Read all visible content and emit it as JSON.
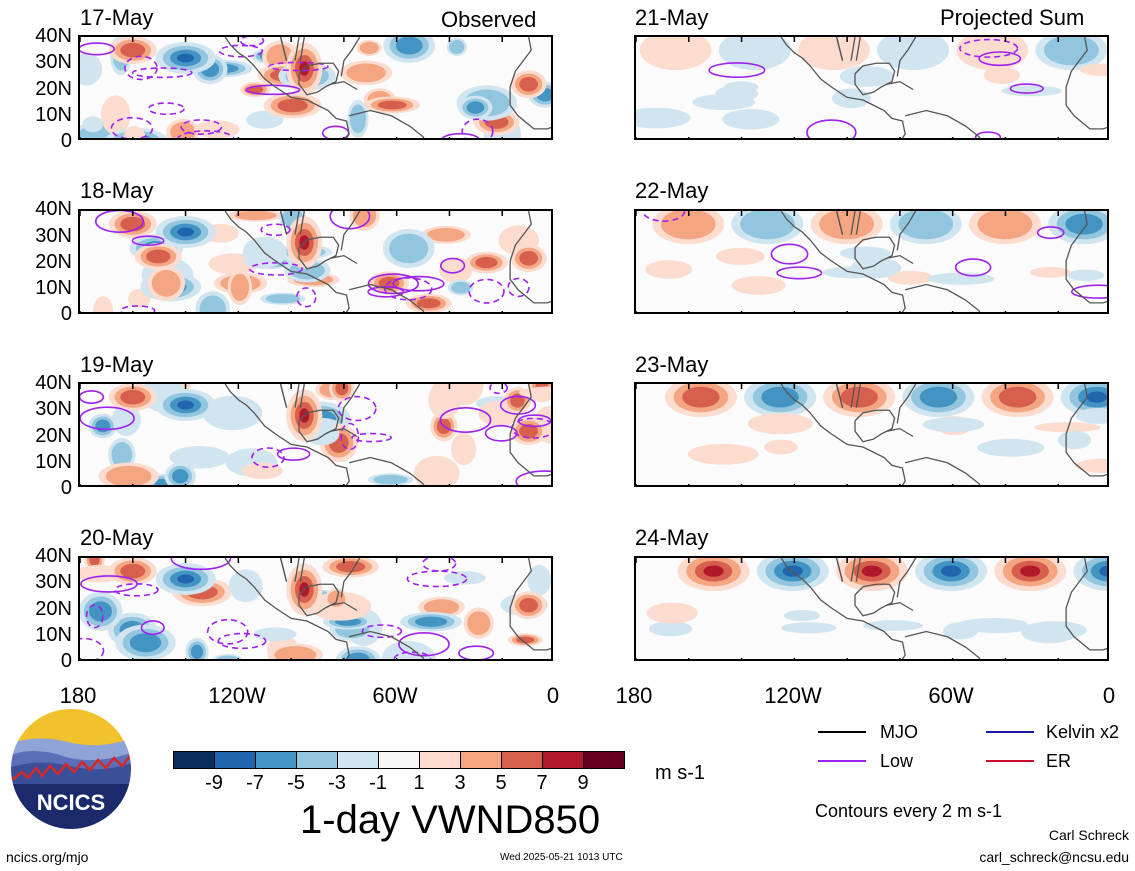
{
  "panels": [
    {
      "id": "p1",
      "date": "17-May",
      "tag": "Observed",
      "col": 0,
      "row": 0,
      "mode": "obs"
    },
    {
      "id": "p2",
      "date": "18-May",
      "tag": "",
      "col": 0,
      "row": 1,
      "mode": "obs"
    },
    {
      "id": "p3",
      "date": "19-May",
      "tag": "",
      "col": 0,
      "row": 2,
      "mode": "obs"
    },
    {
      "id": "p4",
      "date": "20-May",
      "tag": "",
      "col": 0,
      "row": 3,
      "mode": "obs"
    },
    {
      "id": "p5",
      "date": "21-May",
      "tag": "Projected Sum",
      "col": 1,
      "row": 0,
      "mode": "proj"
    },
    {
      "id": "p6",
      "date": "22-May",
      "tag": "",
      "col": 1,
      "row": 1,
      "mode": "proj"
    },
    {
      "id": "p7",
      "date": "23-May",
      "tag": "",
      "col": 1,
      "row": 2,
      "mode": "proj"
    },
    {
      "id": "p8",
      "date": "24-May",
      "tag": "",
      "col": 1,
      "row": 3,
      "mode": "proj"
    }
  ],
  "y_ticks": [
    "40N",
    "30N",
    "20N",
    "10N",
    "0"
  ],
  "x_ticks": [
    "180",
    "120W",
    "60W",
    "0"
  ],
  "colorbar": {
    "colors": [
      "#0b2e5c",
      "#2166ac",
      "#4393c3",
      "#92c5de",
      "#d1e5f0",
      "#f7f7f7",
      "#fbdccf",
      "#f4a582",
      "#d6604d",
      "#b2182b",
      "#67001f"
    ],
    "labels": [
      "-9",
      "-7",
      "-5",
      "-3",
      "-1",
      "1",
      "3",
      "5",
      "7",
      "9"
    ],
    "units": "m s-1"
  },
  "title": "1-day VWND850",
  "legend": [
    {
      "name": "MJO",
      "color": "#000000"
    },
    {
      "name": "Kelvin x2",
      "color": "#1a1aa0"
    },
    {
      "name": "Low",
      "color": "#a020f0"
    },
    {
      "name": "ER",
      "color": "#c8102e"
    }
  ],
  "contour_note": "Contours every 2 m s-1",
  "author": "Carl Schreck",
  "email": "carl_schreck@ncsu.edu",
  "site": "ncics.org/mjo",
  "timestamp": "Wed 2025-05-21 1013 UTC",
  "logo_text": "NCICS"
}
